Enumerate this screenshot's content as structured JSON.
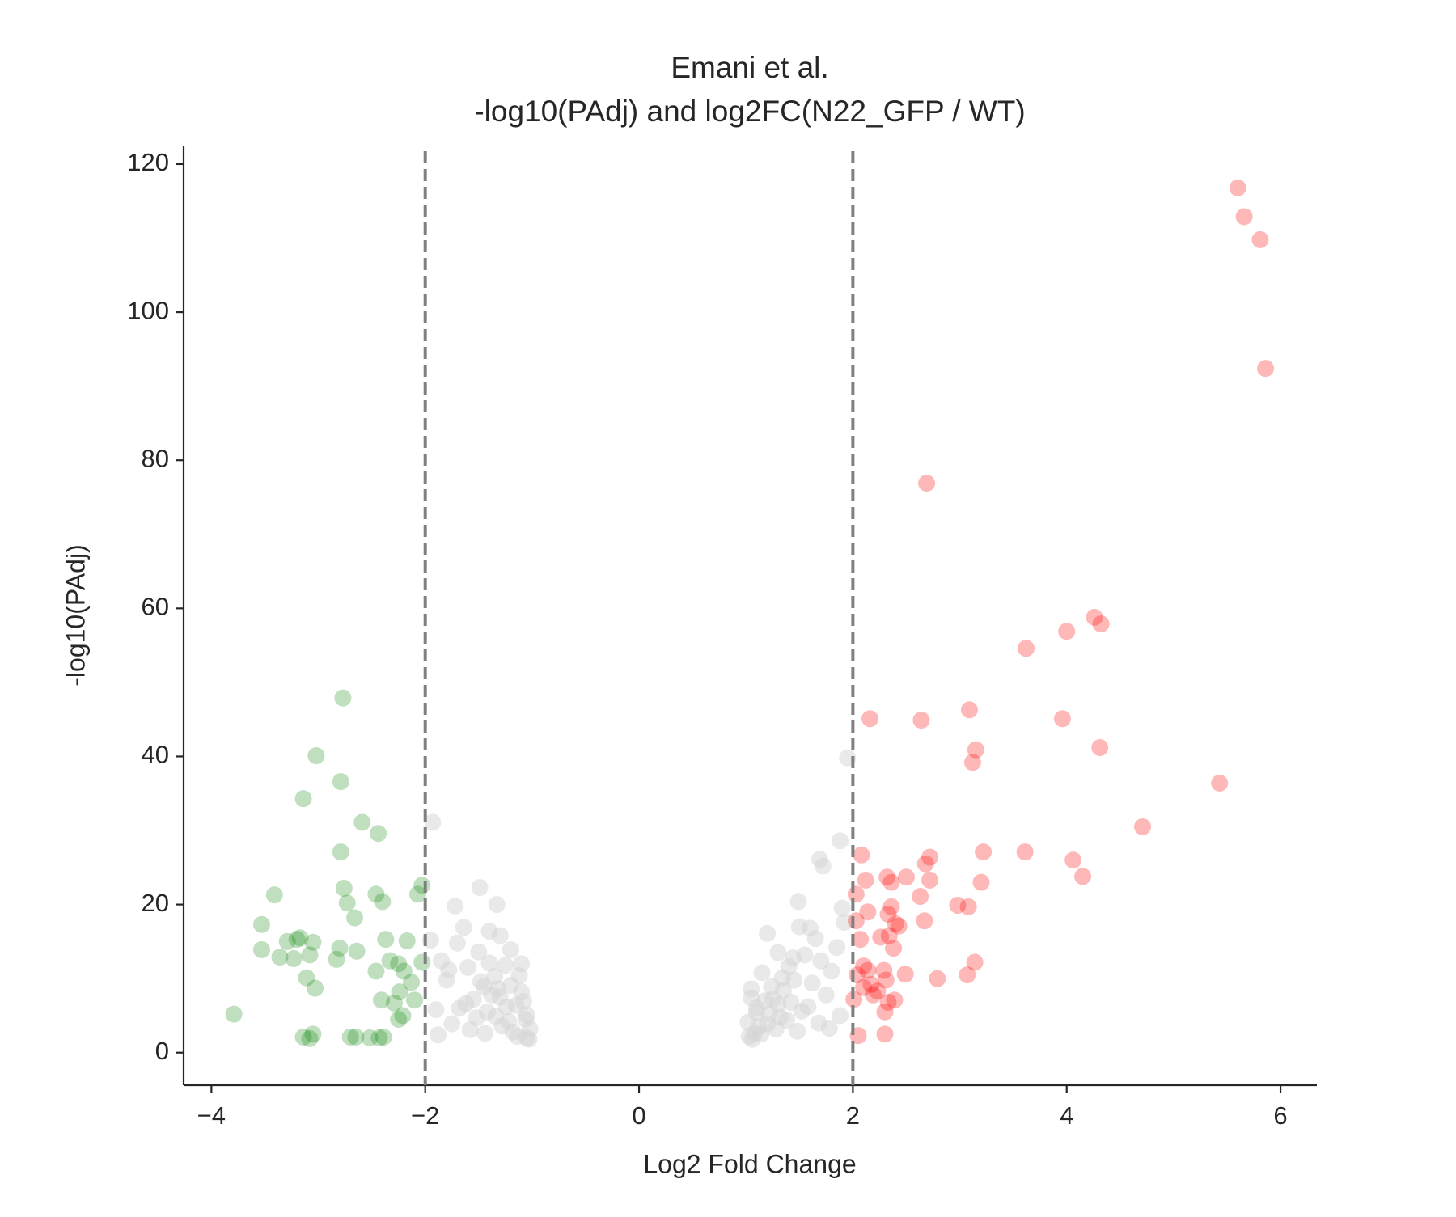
{
  "chart_data": {
    "type": "scatter",
    "title": [
      "Emani et al.",
      "-log10(PAdj) and log2FC(N22_GFP / WT)"
    ],
    "xlabel": "Log2 Fold Change",
    "ylabel": "-log10(PAdj)",
    "xlim": [
      -4.26,
      6.34
    ],
    "ylim": [
      -4.4,
      122.4
    ],
    "xticks": [
      {
        "value": -4,
        "label": "−4"
      },
      {
        "value": -2,
        "label": "−2"
      },
      0,
      2,
      4,
      6
    ],
    "yticks": [
      0,
      20,
      40,
      60,
      80,
      100,
      120
    ],
    "vlines": [
      -2,
      2
    ],
    "vline_color": "#808080",
    "vline_style": "dashed",
    "series": [
      {
        "color": "#d3d3d3",
        "alpha": 0.5,
        "x": [
          -1.93,
          -1.49,
          -1.33,
          -1.72,
          -1.64,
          -1.95,
          -1.85,
          -1.8,
          -1.7,
          -1.6,
          -1.55,
          -1.5,
          -1.45,
          -1.4,
          -1.35,
          -1.3,
          -1.25,
          -1.2,
          -1.15,
          -1.1,
          -1.05,
          -1.02,
          -1.9,
          -1.75,
          -1.62,
          -1.52,
          -1.42,
          -1.32,
          -1.22,
          -1.12,
          -1.08,
          -1.18,
          -1.28,
          -1.38,
          -1.48,
          -1.58,
          -1.68,
          -1.78,
          -1.88,
          -1.03,
          -1.06,
          -1.14,
          -1.24,
          -1.34,
          -1.44,
          -1.1,
          -1.2,
          -1.3,
          -1.4,
          -1.05,
          1.95,
          1.88,
          1.69,
          1.72,
          1.49,
          1.2,
          1.6,
          1.65,
          1.55,
          1.7,
          1.8,
          1.9,
          1.45,
          1.4,
          1.35,
          1.3,
          1.25,
          1.15,
          1.1,
          1.05,
          1.02,
          1.85,
          1.75,
          1.62,
          1.52,
          1.42,
          1.32,
          1.22,
          1.12,
          1.08,
          1.18,
          1.28,
          1.38,
          1.48,
          1.58,
          1.68,
          1.78,
          1.88,
          1.03,
          1.06,
          1.14,
          1.24,
          1.34,
          1.44,
          1.1,
          1.2,
          1.3,
          1.05,
          1.5,
          1.92
        ],
        "values": [
          31.1,
          22.3,
          20.0,
          19.8,
          16.9,
          15.2,
          12.4,
          9.8,
          14.8,
          11.5,
          7.2,
          13.6,
          8.9,
          12.1,
          10.3,
          7.5,
          11.8,
          9.1,
          6.4,
          8.2,
          5.1,
          3.2,
          5.8,
          3.9,
          6.6,
          4.7,
          5.5,
          8.6,
          4.2,
          10.4,
          6.9,
          2.8,
          3.6,
          7.8,
          9.6,
          3.1,
          6.0,
          11.2,
          2.4,
          1.8,
          4.5,
          2.2,
          6.2,
          4.9,
          2.6,
          12.0,
          13.9,
          15.8,
          16.4,
          2.0,
          39.8,
          28.6,
          26.1,
          25.2,
          20.4,
          16.1,
          16.8,
          15.4,
          13.2,
          12.4,
          11.0,
          19.5,
          9.8,
          11.6,
          8.4,
          13.5,
          7.2,
          10.8,
          6.0,
          8.6,
          4.1,
          14.2,
          7.8,
          9.4,
          5.6,
          6.8,
          4.8,
          5.2,
          3.5,
          2.6,
          7.0,
          3.2,
          4.4,
          2.9,
          6.2,
          4.0,
          3.3,
          5.0,
          2.2,
          1.8,
          2.5,
          8.9,
          10.1,
          12.8,
          5.4,
          3.9,
          6.5,
          7.4,
          17.0,
          17.6
        ]
      },
      {
        "color": "#008000",
        "alpha": 0.25,
        "x": [
          -2.77,
          -3.02,
          -2.79,
          -3.14,
          -2.59,
          -2.44,
          -2.79,
          -2.76,
          -2.03,
          -2.46,
          -2.07,
          -3.41,
          -2.73,
          -2.4,
          -2.66,
          -3.53,
          -2.17,
          -2.37,
          -3.17,
          -3.29,
          -3.05,
          -3.2,
          -2.8,
          -3.53,
          -2.64,
          -3.08,
          -3.36,
          -3.23,
          -2.83,
          -2.33,
          -2.25,
          -2.03,
          -2.2,
          -2.46,
          -3.11,
          -2.13,
          -3.03,
          -2.24,
          -2.41,
          -2.29,
          -2.1,
          -3.79,
          -2.21,
          -2.25,
          -3.05,
          -3.14,
          -3.08,
          -2.7,
          -2.65,
          -2.52,
          -2.43,
          -2.39
        ],
        "values": [
          47.9,
          40.1,
          36.6,
          34.3,
          31.1,
          29.6,
          27.1,
          22.2,
          22.6,
          21.4,
          21.4,
          21.3,
          20.2,
          20.4,
          18.2,
          17.3,
          15.1,
          15.3,
          15.5,
          15.0,
          14.9,
          15.3,
          14.1,
          13.9,
          13.7,
          13.2,
          12.9,
          12.7,
          12.6,
          12.4,
          12.0,
          12.2,
          11.0,
          11.0,
          10.1,
          9.5,
          8.7,
          8.2,
          7.1,
          6.7,
          7.1,
          5.2,
          5.0,
          4.5,
          2.5,
          2.1,
          1.9,
          2.1,
          2.1,
          2.0,
          2.0,
          2.1
        ]
      },
      {
        "color": "#ff0000",
        "alpha": 0.28,
        "x": [
          5.6,
          5.66,
          5.81,
          5.86,
          2.69,
          4.26,
          4.32,
          4.0,
          3.62,
          3.09,
          2.16,
          2.64,
          3.96,
          3.15,
          4.31,
          3.12,
          5.43,
          4.71,
          2.08,
          2.72,
          3.22,
          3.61,
          2.68,
          4.06,
          4.15,
          2.12,
          2.32,
          2.5,
          2.72,
          3.2,
          2.36,
          2.03,
          2.63,
          2.98,
          3.08,
          2.36,
          2.14,
          2.33,
          2.03,
          2.67,
          2.4,
          2.43,
          2.07,
          2.26,
          2.34,
          2.38,
          3.14,
          2.1,
          2.14,
          2.29,
          2.04,
          2.49,
          2.31,
          2.79,
          3.07,
          2.17,
          2.1,
          2.23,
          2.19,
          2.39,
          2.33,
          2.01,
          2.3,
          2.05,
          2.3
        ],
        "values": [
          116.8,
          112.9,
          109.8,
          92.4,
          76.9,
          58.8,
          57.9,
          56.9,
          54.6,
          46.3,
          45.1,
          44.9,
          45.1,
          40.9,
          41.2,
          39.2,
          36.4,
          30.5,
          26.7,
          26.4,
          27.1,
          27.1,
          25.5,
          26.0,
          23.8,
          23.3,
          23.7,
          23.7,
          23.3,
          23.0,
          23.0,
          21.4,
          21.1,
          19.9,
          19.7,
          19.7,
          19.0,
          18.7,
          17.8,
          17.8,
          17.4,
          17.1,
          15.3,
          15.6,
          15.8,
          14.1,
          12.2,
          11.7,
          11.1,
          11.1,
          10.5,
          10.6,
          9.8,
          10.0,
          10.5,
          9.2,
          8.8,
          8.3,
          7.8,
          7.1,
          6.8,
          7.2,
          5.5,
          2.3,
          2.5
        ]
      }
    ]
  }
}
